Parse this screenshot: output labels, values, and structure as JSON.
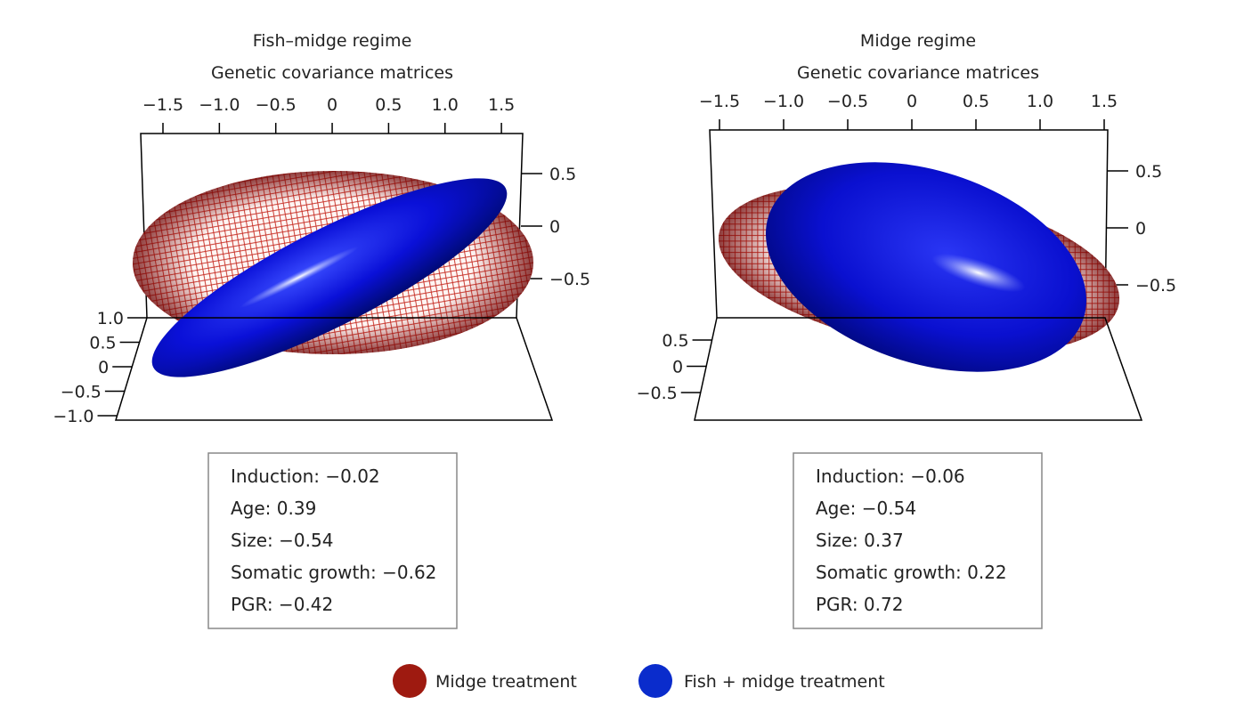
{
  "chart_data": [
    {
      "type": "ellipsoid-3d",
      "title": "Fish–midge regime",
      "subtitle": "Genetic covariance matrices",
      "x_ticks": [
        -1.5,
        -1.0,
        -0.5,
        0,
        0.5,
        1.0,
        1.5
      ],
      "x_tick_labels": [
        "−1.5",
        "−1.0",
        "−0.5",
        "0",
        "0.5",
        "1.0",
        "1.5"
      ],
      "z_ticks": [
        0.5,
        0,
        -0.5
      ],
      "z_tick_labels": [
        "0.5",
        "0",
        "−0.5"
      ],
      "y_ticks": [
        1.0,
        0.5,
        0,
        -0.5,
        -1.0
      ],
      "y_tick_labels": [
        "1.0",
        "0.5",
        "0",
        "−0.5",
        "−1.0"
      ],
      "loadings_box": [
        "Induction: −0.02",
        "Age: 0.39",
        "Size: −0.54",
        "Somatic growth: −0.62",
        "PGR: −0.42"
      ]
    },
    {
      "type": "ellipsoid-3d",
      "title": "Midge regime",
      "subtitle": "Genetic covariance matrices",
      "x_ticks": [
        -1.5,
        -1.0,
        -0.5,
        0,
        0.5,
        1.0,
        1.5
      ],
      "x_tick_labels": [
        "−1.5",
        "−1.0",
        "−0.5",
        "0",
        "0.5",
        "1.0",
        "1.5"
      ],
      "z_ticks": [
        0.5,
        0,
        -0.5
      ],
      "z_tick_labels": [
        "0.5",
        "0",
        "−0.5"
      ],
      "y_ticks": [
        0.5,
        0,
        -0.5
      ],
      "y_tick_labels": [
        "0.5",
        "0",
        "−0.5"
      ],
      "loadings_box": [
        "Induction: −0.06",
        "Age: −0.54",
        "Size: 0.37",
        "Somatic growth: 0.22",
        "PGR: 0.72"
      ]
    }
  ],
  "legend": [
    {
      "label": "Midge treatment",
      "color": "#9e1a10"
    },
    {
      "label": "Fish + midge treatment",
      "color": "#0a2ccc"
    }
  ]
}
